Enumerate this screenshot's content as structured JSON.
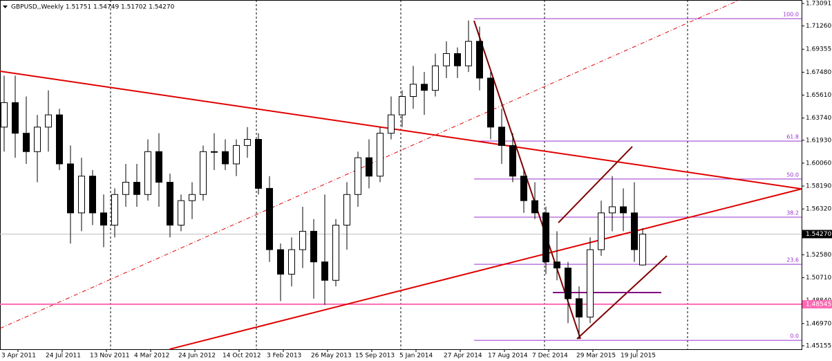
{
  "chart_data": {
    "type": "candlestick",
    "title": "GBPUSD,,Weekly  1.51751 1.54749 1.51702 1.54270",
    "x": [
      -5,
      -1,
      3,
      7,
      11,
      15,
      19,
      23,
      27,
      31,
      35,
      39,
      43,
      47,
      51,
      55,
      59,
      63,
      67,
      71,
      75,
      79,
      83,
      87,
      91,
      95,
      99,
      103,
      107,
      111,
      115,
      119,
      123,
      127,
      131,
      135,
      139,
      143,
      147,
      151,
      155,
      159,
      163,
      167,
      171,
      175,
      179,
      183,
      187,
      191,
      195,
      199,
      203,
      207,
      211,
      215,
      219,
      223,
      226
    ],
    "open": [
      1.63,
      1.65,
      1.625,
      1.61,
      1.63,
      1.64,
      1.6,
      1.56,
      1.59,
      1.56,
      1.55,
      1.575,
      1.585,
      1.575,
      1.61,
      1.585,
      1.55,
      1.57,
      1.575,
      1.61,
      1.61,
      1.6,
      1.615,
      1.62,
      1.58,
      1.53,
      1.51,
      1.53,
      1.545,
      1.52,
      1.505,
      1.55,
      1.575,
      1.605,
      1.59,
      1.625,
      1.64,
      1.655,
      1.665,
      1.66,
      1.68,
      1.69,
      1.68,
      1.7,
      1.67,
      1.63,
      1.615,
      1.59,
      1.57,
      1.56,
      1.52,
      1.515,
      1.49,
      1.475,
      1.53,
      1.56,
      1.565,
      1.56,
      1.51751
    ],
    "high": [
      1.672,
      1.672,
      1.655,
      1.64,
      1.66,
      1.645,
      1.615,
      1.605,
      1.595,
      1.575,
      1.58,
      1.6,
      1.6,
      1.62,
      1.625,
      1.592,
      1.575,
      1.585,
      1.615,
      1.625,
      1.62,
      1.62,
      1.63,
      1.625,
      1.59,
      1.535,
      1.54,
      1.565,
      1.555,
      1.575,
      1.555,
      1.585,
      1.61,
      1.62,
      1.63,
      1.655,
      1.66,
      1.68,
      1.675,
      1.69,
      1.7,
      1.695,
      1.717,
      1.712,
      1.675,
      1.645,
      1.625,
      1.595,
      1.585,
      1.565,
      1.545,
      1.52,
      1.5,
      1.54,
      1.57,
      1.59,
      1.58,
      1.585,
      1.54749
    ],
    "low": [
      1.61,
      1.605,
      1.6,
      1.585,
      1.61,
      1.595,
      1.535,
      1.545,
      1.55,
      1.532,
      1.54,
      1.565,
      1.565,
      1.57,
      1.565,
      1.54,
      1.545,
      1.555,
      1.57,
      1.595,
      1.595,
      1.59,
      1.605,
      1.575,
      1.52,
      1.488,
      1.5,
      1.515,
      1.49,
      1.485,
      1.5,
      1.53,
      1.565,
      1.58,
      1.585,
      1.62,
      1.63,
      1.645,
      1.64,
      1.655,
      1.67,
      1.67,
      1.675,
      1.66,
      1.62,
      1.6,
      1.585,
      1.56,
      1.555,
      1.51,
      1.505,
      1.47,
      1.457,
      1.47,
      1.525,
      1.545,
      1.545,
      1.52,
      1.51702
    ],
    "close": [
      1.65,
      1.625,
      1.61,
      1.63,
      1.64,
      1.6,
      1.56,
      1.59,
      1.56,
      1.55,
      1.575,
      1.585,
      1.575,
      1.61,
      1.585,
      1.55,
      1.57,
      1.575,
      1.61,
      1.61,
      1.6,
      1.615,
      1.62,
      1.58,
      1.53,
      1.51,
      1.53,
      1.545,
      1.52,
      1.505,
      1.55,
      1.575,
      1.605,
      1.59,
      1.625,
      1.64,
      1.655,
      1.665,
      1.66,
      1.68,
      1.69,
      1.68,
      1.7,
      1.67,
      1.63,
      1.615,
      1.59,
      1.57,
      1.56,
      1.52,
      1.515,
      1.49,
      1.475,
      1.53,
      1.56,
      1.565,
      1.56,
      1.53,
      1.5427
    ],
    "xlim": [
      -6.5,
      283.5
    ],
    "ylim": [
      1.44873,
      1.73373
    ],
    "xticks": [
      {
        "value": 0,
        "label": "3 Apr 2011"
      },
      {
        "value": 16,
        "label": "24 Jul 2011"
      },
      {
        "value": 32,
        "label": "13 Nov 2011"
      },
      {
        "value": 48,
        "label": "4 Mar 2012"
      },
      {
        "value": 64,
        "label": "24 Jun 2012"
      },
      {
        "value": 80,
        "label": "14 Oct 2012"
      },
      {
        "value": 96,
        "label": "3 Feb 2013"
      },
      {
        "value": 112,
        "label": "26 May 2013"
      },
      {
        "value": 128,
        "label": "15 Sep 2013"
      },
      {
        "value": 144,
        "label": "5 Jan 2014"
      },
      {
        "value": 160,
        "label": "27 Apr 2014"
      },
      {
        "value": 176,
        "label": "17 Aug 2014"
      },
      {
        "value": 192,
        "label": "7 Dec 2014"
      },
      {
        "value": 208,
        "label": "29 Mar 2015"
      },
      {
        "value": 224,
        "label": "19 Jul 2015"
      }
    ],
    "yticks": [
      1.73091,
      {
        "value": 1.7126,
        "label": "1.71260"
      },
      1.69355,
      {
        "value": 1.6748,
        "label": "1.67480"
      },
      {
        "value": 1.6561,
        "label": "1.65610"
      },
      {
        "value": 1.6374,
        "label": "1.63740"
      },
      {
        "value": 1.6193,
        "label": "1.61930"
      },
      {
        "value": 1.6006,
        "label": "1.60060"
      },
      {
        "value": 1.5819,
        "label": "1.58190"
      },
      {
        "value": 1.5632,
        "label": "1.56320"
      },
      {
        "value": 1.5258,
        "label": "1.52580"
      },
      {
        "value": 1.5071,
        "label": "1.50710"
      },
      {
        "value": 1.4884,
        "label": "1.48840"
      },
      {
        "value": 1.4697,
        "label": "1.46970"
      },
      1.45155
    ],
    "price_levels": [
      {
        "value": 1.5427,
        "label": "1.54270",
        "color": "#c0c0c0",
        "box": "#000000"
      },
      {
        "value": 1.48545,
        "label": "1.48545",
        "color": "#ff69b4",
        "box": "#ff69b4"
      }
    ],
    "fibo": {
      "color": "#9932cc",
      "x": [
        165,
        283.5
      ],
      "levels": [
        {
          "label": "100.0",
          "value": 1.7185
        },
        {
          "label": "61.8",
          "value": 1.6186
        },
        {
          "label": "50.0",
          "value": 1.5876
        },
        {
          "label": "38.2",
          "value": 1.5565
        },
        {
          "label": "23.6",
          "value": 1.5181
        },
        {
          "label": "0.0",
          "value": 1.456
        }
      ]
    },
    "trendlines": [
      {
        "x": [
          -6.5,
          283.5
        ],
        "y": [
          1.6756,
          1.5796
        ],
        "color": "#e00000",
        "width": 2,
        "dash": "solid"
      },
      {
        "x": [
          54.75,
          283.5
        ],
        "y": [
          1.4487,
          1.5796
        ],
        "color": "#e00000",
        "width": 2,
        "dash": "solid"
      },
      {
        "x": [
          -6.5,
          261
        ],
        "y": [
          1.4657,
          1.7337
        ],
        "color": "#e00000",
        "width": 1,
        "dash": "dashdot"
      },
      {
        "x": [
          165,
          203.5
        ],
        "y": [
          1.7168,
          1.4572
        ],
        "color": "#800000",
        "width": 2,
        "dash": "solid"
      },
      {
        "x": [
          195.5,
          222.25
        ],
        "y": [
          1.552,
          1.6141
        ],
        "color": "#800000",
        "width": 2,
        "dash": "solid"
      },
      {
        "x": [
          202.25,
          234.75
        ],
        "y": [
          1.4572,
          1.5249
        ],
        "color": "#800000",
        "width": 2,
        "dash": "solid"
      },
      {
        "x": [
          193.5,
          232.75
        ],
        "y": [
          1.495,
          1.495
        ],
        "color": "#800080",
        "width": 2,
        "dash": "solid"
      }
    ]
  }
}
